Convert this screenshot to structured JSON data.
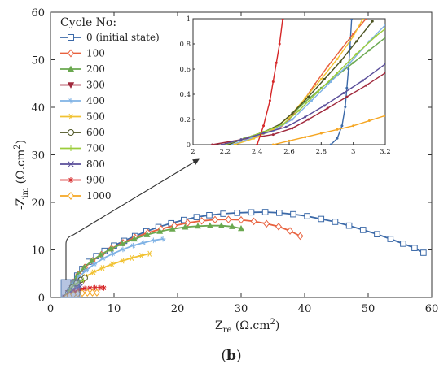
{
  "caption": {
    "paren_open": "(",
    "letter": "b",
    "paren_close": ")"
  },
  "chart_data": {
    "type": "line",
    "xlabel": {
      "main": "Z",
      "sub": "re",
      "unit": " (Ω.cm",
      "sup": "2",
      "close": ")"
    },
    "ylabel": {
      "prefix": "-Z",
      "sub": "im",
      "unit": " (Ω.cm",
      "sup": "2",
      "close": ")"
    },
    "xlim": [
      0,
      60
    ],
    "ylim": [
      0,
      60
    ],
    "xticks": [
      "0",
      "10",
      "20",
      "30",
      "40",
      "50",
      "60"
    ],
    "yticks": [
      "0",
      "10",
      "20",
      "30",
      "40",
      "50",
      "60"
    ],
    "legend_title": "Cycle No:",
    "legend_position": "top-left",
    "grid": false,
    "series": [
      {
        "name": "0 (initial state)",
        "color": "#3b69a8",
        "marker": "square",
        "x": [
          2.9,
          3.2,
          3.6,
          4.2,
          5.0,
          6.0,
          7.2,
          8.5,
          10,
          11.6,
          13.3,
          15.1,
          17,
          19,
          21,
          23,
          25,
          27.2,
          29.4,
          31.6,
          33.8,
          36,
          38.2,
          40.4,
          42.6,
          44.8,
          47,
          49.2,
          51.4,
          53.5,
          55.5,
          57.3,
          58.7
        ],
        "y": [
          0,
          1.5,
          3,
          4.6,
          6,
          7.5,
          8.7,
          9.8,
          10.9,
          11.9,
          12.9,
          13.9,
          14.8,
          15.6,
          16.3,
          16.9,
          17.3,
          17.6,
          17.8,
          17.9,
          17.95,
          17.8,
          17.5,
          17.1,
          16.5,
          15.9,
          15.1,
          14.2,
          13.3,
          12.3,
          11.3,
          10.4,
          9.4
        ]
      },
      {
        "name": "100",
        "color": "#e8613e",
        "marker": "diamond",
        "x": [
          2.6,
          3.0,
          3.6,
          4.4,
          5.4,
          6.6,
          8.0,
          9.6,
          11.4,
          13.3,
          15.3,
          17.4,
          19.5,
          21.6,
          23.8,
          25.9,
          28.0,
          30.0,
          32.0,
          34.0,
          35.9,
          37.7,
          39.3
        ],
        "y": [
          0,
          1.5,
          3.2,
          4.8,
          6.3,
          7.7,
          9.0,
          10.3,
          11.5,
          12.6,
          13.6,
          14.4,
          15.1,
          15.7,
          16.1,
          16.35,
          16.4,
          16.3,
          16.0,
          15.5,
          14.9,
          14.0,
          12.9
        ]
      },
      {
        "name": "200",
        "color": "#6aa84f",
        "marker": "triangle",
        "x": [
          2.5,
          2.9,
          3.5,
          4.3,
          5.3,
          6.5,
          7.9,
          9.5,
          11.3,
          13.2,
          15.2,
          17.2,
          19.2,
          21.2,
          23.2,
          25.1,
          26.9,
          28.6,
          30.0
        ],
        "y": [
          0,
          1.5,
          3.2,
          4.8,
          6.3,
          7.7,
          9.0,
          10.2,
          11.3,
          12.3,
          13.2,
          13.9,
          14.4,
          14.8,
          15.0,
          15.1,
          15.1,
          14.9,
          14.5
        ]
      },
      {
        "name": "300",
        "color": "#a0283c",
        "marker": "triangle-down",
        "x": [
          2.35,
          2.8,
          3.4,
          4.0,
          4.6,
          5.2
        ],
        "y": [
          0,
          1.0,
          2.0,
          2.8,
          3.3,
          3.6
        ]
      },
      {
        "name": "400",
        "color": "#7fb2e5",
        "marker": "cross",
        "x": [
          2.4,
          2.9,
          3.6,
          4.5,
          5.6,
          6.9,
          8.3,
          9.8,
          11.4,
          13.0,
          14.6,
          16.2,
          17.7
        ],
        "y": [
          0,
          1.4,
          2.9,
          4.3,
          5.7,
          7.0,
          8.2,
          9.2,
          10.1,
          10.9,
          11.5,
          12.0,
          12.3
        ]
      },
      {
        "name": "500",
        "color": "#f1c232",
        "marker": "star",
        "x": [
          2.3,
          2.8,
          3.5,
          4.4,
          5.5,
          6.8,
          8.2,
          9.7,
          11.3,
          12.8,
          14.3,
          15.6
        ],
        "y": [
          0,
          1.0,
          2.2,
          3.3,
          4.4,
          5.3,
          6.2,
          7.0,
          7.7,
          8.3,
          8.8,
          9.2
        ]
      },
      {
        "name": "600",
        "color": "#4b5320",
        "marker": "circle",
        "x": [
          2.3,
          2.8,
          3.4,
          4.1,
          4.8,
          5.4
        ],
        "y": [
          0,
          1.0,
          2.1,
          3.0,
          3.7,
          4.1
        ]
      },
      {
        "name": "700",
        "color": "#9bcd3b",
        "marker": "plus",
        "x": [
          2.3,
          2.7,
          3.2,
          3.8,
          4.5,
          5.2
        ],
        "y": [
          0,
          0.9,
          1.9,
          2.7,
          3.3,
          3.6
        ]
      },
      {
        "name": "800",
        "color": "#5a4e9a",
        "marker": "x",
        "x": [
          2.3,
          2.9,
          3.5,
          4.1,
          4.7
        ],
        "y": [
          0,
          0.8,
          1.5,
          2.0,
          2.3
        ]
      },
      {
        "name": "900",
        "color": "#d62728",
        "marker": "asterisk",
        "x": [
          2.3,
          3.0,
          3.8,
          4.6,
          5.4,
          6.2,
          7.0,
          7.8,
          8.4
        ],
        "y": [
          0,
          0.7,
          1.2,
          1.6,
          1.9,
          2.0,
          2.05,
          2.05,
          2.0
        ]
      },
      {
        "name": "1000",
        "color": "#f5a623",
        "marker": "diamond",
        "x": [
          2.5,
          3.0,
          3.6,
          4.3,
          5.0,
          5.8,
          6.6,
          7.3
        ],
        "y": [
          0,
          0.35,
          0.6,
          0.8,
          0.92,
          0.98,
          1.0,
          1.0
        ]
      }
    ],
    "inset": {
      "xlim": [
        2,
        3.2
      ],
      "ylim": [
        0,
        1
      ],
      "xticks": [
        "2",
        "2.2",
        "2.4",
        "2.6",
        "2.8",
        "3",
        "3.2"
      ],
      "yticks": [
        "0",
        "0.2",
        "0.4",
        "0.6",
        "0.8",
        "1"
      ],
      "series": [
        {
          "color": "#3b69a8",
          "x": [
            2.86,
            2.9,
            2.93,
            2.95,
            2.96,
            2.97,
            2.98,
            2.99
          ],
          "y": [
            0,
            0.05,
            0.15,
            0.3,
            0.45,
            0.6,
            0.78,
            1.0
          ]
        },
        {
          "color": "#e8613e",
          "x": [
            2.18,
            2.3,
            2.42,
            2.54,
            2.6,
            2.68,
            2.76,
            2.84,
            2.92,
            3.0,
            3.08
          ],
          "y": [
            0,
            0.04,
            0.08,
            0.13,
            0.2,
            0.33,
            0.48,
            0.62,
            0.75,
            0.88,
            1.0
          ]
        },
        {
          "color": "#6aa84f",
          "x": [
            2.2,
            2.3,
            2.42,
            2.52,
            2.6,
            2.7,
            2.8,
            2.9,
            3.0,
            3.1,
            3.2
          ],
          "y": [
            0,
            0.04,
            0.09,
            0.14,
            0.22,
            0.34,
            0.45,
            0.55,
            0.65,
            0.75,
            0.85
          ]
        },
        {
          "color": "#a0283c",
          "x": [
            2.12,
            2.3,
            2.5,
            2.62,
            2.72,
            2.84,
            2.96,
            3.08,
            3.2
          ],
          "y": [
            0,
            0.04,
            0.08,
            0.13,
            0.2,
            0.29,
            0.38,
            0.47,
            0.57
          ]
        },
        {
          "color": "#7fb2e5",
          "x": [
            2.24,
            2.36,
            2.5,
            2.62,
            2.74,
            2.86,
            2.98,
            3.1,
            3.2
          ],
          "y": [
            0,
            0.05,
            0.11,
            0.2,
            0.35,
            0.5,
            0.65,
            0.82,
            0.95
          ]
        },
        {
          "color": "#f1c232",
          "x": [
            2.26,
            2.38,
            2.5,
            2.6,
            2.7,
            2.8,
            2.9,
            3.0,
            3.06
          ],
          "y": [
            0,
            0.05,
            0.12,
            0.22,
            0.37,
            0.52,
            0.68,
            0.86,
            1.0
          ]
        },
        {
          "color": "#4b5320",
          "x": [
            2.22,
            2.32,
            2.44,
            2.54,
            2.62,
            2.72,
            2.82,
            2.92,
            3.02,
            3.12
          ],
          "y": [
            0,
            0.05,
            0.1,
            0.16,
            0.25,
            0.38,
            0.52,
            0.66,
            0.82,
            0.98
          ]
        },
        {
          "color": "#9bcd3b",
          "x": [
            2.2,
            2.32,
            2.44,
            2.56,
            2.66,
            2.78,
            2.9,
            3.02,
            3.14,
            3.2
          ],
          "y": [
            0,
            0.05,
            0.1,
            0.16,
            0.27,
            0.42,
            0.57,
            0.72,
            0.86,
            0.92
          ]
        },
        {
          "color": "#5a4e9a",
          "x": [
            2.18,
            2.3,
            2.44,
            2.58,
            2.7,
            2.82,
            2.94,
            3.06,
            3.2
          ],
          "y": [
            0,
            0.04,
            0.09,
            0.14,
            0.22,
            0.31,
            0.41,
            0.51,
            0.64
          ]
        },
        {
          "color": "#d62728",
          "x": [
            2.4,
            2.44,
            2.48,
            2.5,
            2.52,
            2.54,
            2.56
          ],
          "y": [
            0,
            0.15,
            0.35,
            0.5,
            0.65,
            0.8,
            1.0
          ]
        },
        {
          "color": "#f5a623",
          "x": [
            2.5,
            2.6,
            2.7,
            2.8,
            2.9,
            3.0,
            3.1,
            3.2
          ],
          "y": [
            0,
            0.03,
            0.06,
            0.09,
            0.12,
            0.15,
            0.19,
            0.23
          ]
        }
      ]
    }
  }
}
